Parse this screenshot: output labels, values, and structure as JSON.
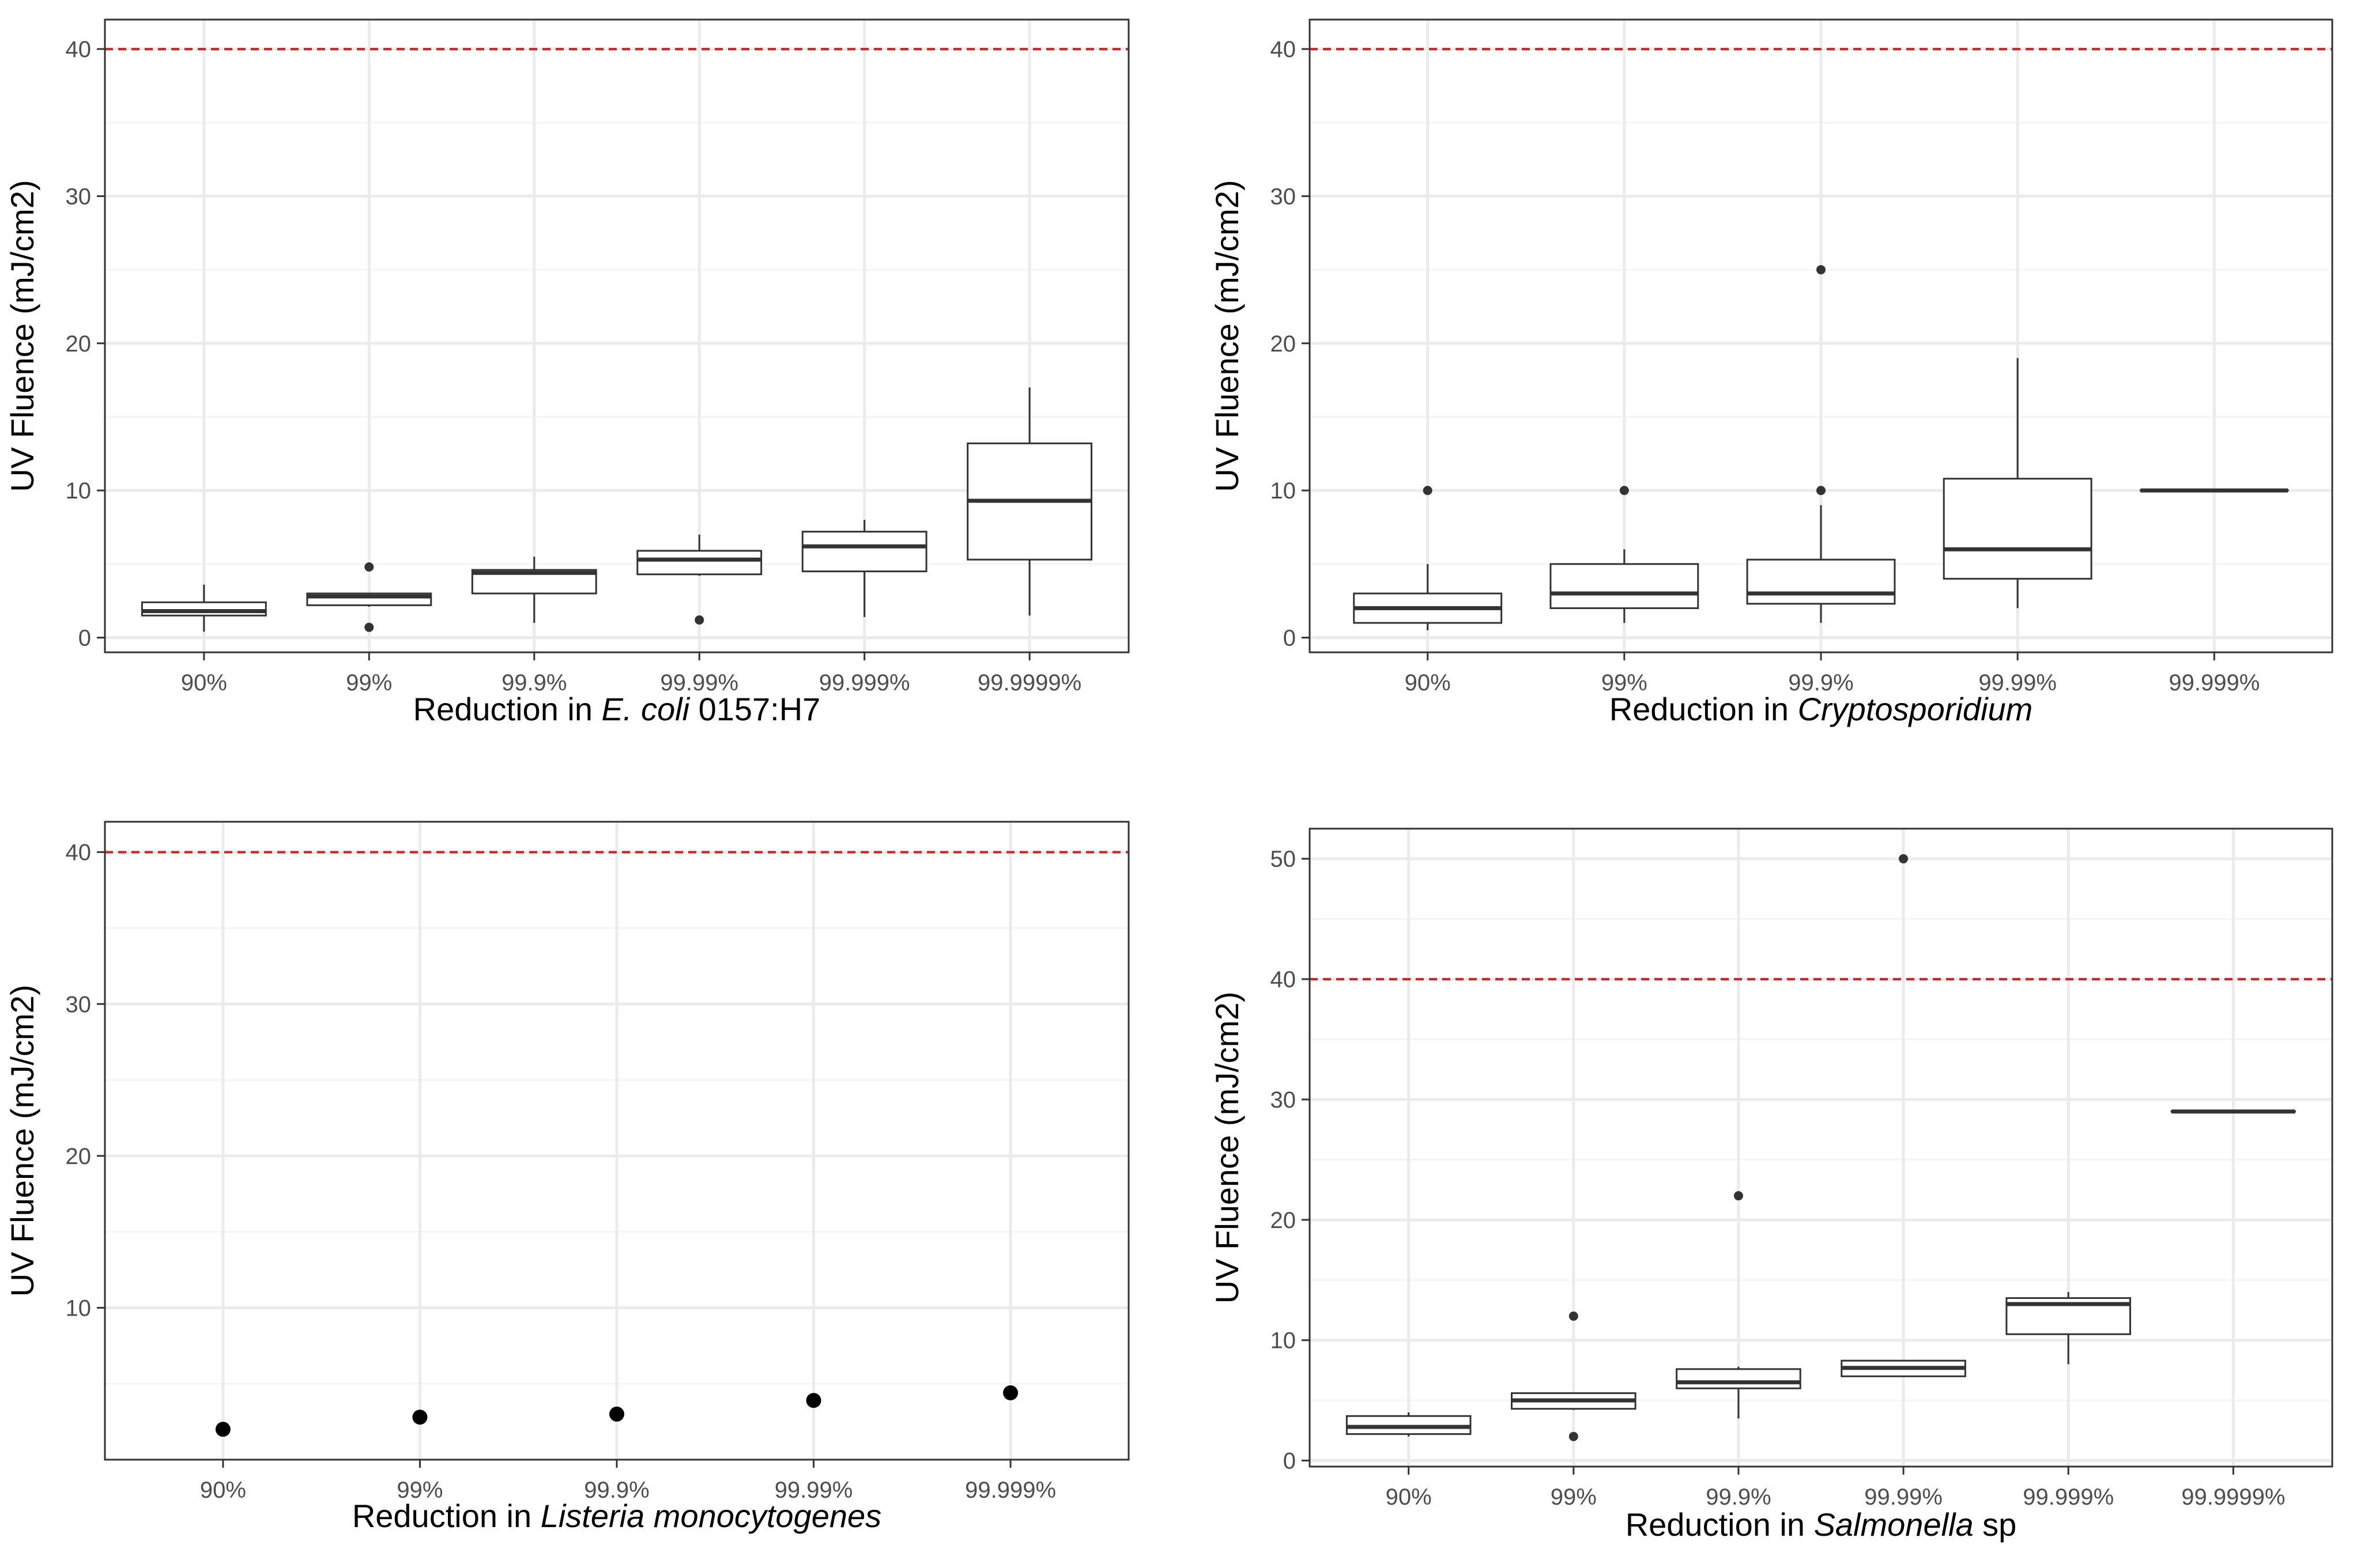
{
  "colors": {
    "reference_line": "#e41a1c",
    "box_stroke": "#333333",
    "grid_major": "#ebebeb",
    "grid_minor": "#f5f5f5",
    "panel_border": "#333333",
    "background": "#ffffff"
  },
  "chart_data": [
    {
      "type": "box",
      "xlabel_prefix": "Reduction in ",
      "xlabel_italic": "E. coli",
      "xlabel_suffix": " 0157:H7",
      "ylabel": "UV Fluence (mJ/cm2)",
      "ylim": [
        -1,
        42
      ],
      "yticks": [
        0,
        10,
        20,
        30,
        40
      ],
      "yminor": [
        5,
        15,
        25,
        35
      ],
      "reference_line": 40,
      "grid": true,
      "categories": [
        "90%",
        "99%",
        "99.9%",
        "99.99%",
        "99.999%",
        "99.9999%"
      ],
      "boxes": [
        {
          "low": 0.4,
          "q1": 1.5,
          "median": 1.8,
          "q3": 2.4,
          "high": 3.6,
          "outliers": []
        },
        {
          "low": 2.1,
          "q1": 2.2,
          "median": 2.8,
          "q3": 3.0,
          "high": 3.0,
          "outliers": [
            4.8,
            0.7
          ]
        },
        {
          "low": 1.0,
          "q1": 3.0,
          "median": 4.4,
          "q3": 4.6,
          "high": 5.5,
          "outliers": []
        },
        {
          "low": 4.2,
          "q1": 4.3,
          "median": 5.3,
          "q3": 5.9,
          "high": 7.0,
          "outliers": [
            1.2
          ]
        },
        {
          "low": 1.4,
          "q1": 4.5,
          "median": 6.2,
          "q3": 7.2,
          "high": 8.0,
          "outliers": []
        },
        {
          "low": 1.5,
          "q1": 5.3,
          "median": 9.3,
          "q3": 13.2,
          "high": 17.0,
          "outliers": []
        }
      ]
    },
    {
      "type": "box",
      "xlabel_prefix": "Reduction in ",
      "xlabel_italic": "Cryptosporidium",
      "xlabel_suffix": "",
      "ylabel": "UV Fluence (mJ/cm2)",
      "ylim": [
        -1,
        42
      ],
      "yticks": [
        0,
        10,
        20,
        30,
        40
      ],
      "yminor": [
        5,
        15,
        25,
        35
      ],
      "reference_line": 40,
      "grid": true,
      "categories": [
        "90%",
        "99%",
        "99.9%",
        "99.99%",
        "99.999%"
      ],
      "boxes": [
        {
          "low": 0.5,
          "q1": 1.0,
          "median": 2.0,
          "q3": 3.0,
          "high": 5.0,
          "outliers": [
            10
          ]
        },
        {
          "low": 1.0,
          "q1": 2.0,
          "median": 3.0,
          "q3": 5.0,
          "high": 6.0,
          "outliers": [
            10
          ]
        },
        {
          "low": 1.0,
          "q1": 2.3,
          "median": 3.0,
          "q3": 5.3,
          "high": 9.0,
          "outliers": [
            25,
            10
          ]
        },
        {
          "low": 2.0,
          "q1": 4.0,
          "median": 6.0,
          "q3": 10.8,
          "high": 19.0,
          "outliers": []
        },
        {
          "low": 10,
          "q1": 10,
          "median": 10,
          "q3": 10,
          "high": 10,
          "outliers": []
        }
      ]
    },
    {
      "type": "scatter",
      "xlabel_prefix": "Reduction in ",
      "xlabel_italic": "Listeria monocytogenes",
      "xlabel_suffix": "",
      "ylabel": "UV Fluence (mJ/cm2)",
      "ylim": [
        0,
        42
      ],
      "yticks": [
        10,
        20,
        30,
        40
      ],
      "yminor": [
        5,
        15,
        25,
        35
      ],
      "reference_line": 40,
      "grid": true,
      "categories": [
        "90%",
        "99%",
        "99.9%",
        "99.99%",
        "99.999%"
      ],
      "values": [
        2.0,
        2.8,
        3.0,
        3.9,
        4.4
      ]
    },
    {
      "type": "box",
      "xlabel_prefix": "Reduction in ",
      "xlabel_italic": "Salmonella",
      "xlabel_suffix": " sp",
      "ylabel": "UV Fluence (mJ/cm2)",
      "ylim": [
        -0.5,
        52.5
      ],
      "yticks": [
        0,
        10,
        20,
        30,
        40,
        50
      ],
      "yminor": [
        5,
        15,
        25,
        35,
        45
      ],
      "reference_line": 40,
      "grid": true,
      "categories": [
        "90%",
        "99%",
        "99.9%",
        "99.99%",
        "99.999%",
        "99.9999%"
      ],
      "boxes": [
        {
          "low": 2.0,
          "q1": 2.2,
          "median": 2.8,
          "q3": 3.7,
          "high": 4.0,
          "outliers": []
        },
        {
          "low": 4.2,
          "q1": 4.3,
          "median": 5.0,
          "q3": 5.6,
          "high": 5.6,
          "outliers": [
            12,
            2
          ]
        },
        {
          "low": 3.5,
          "q1": 6.0,
          "median": 6.5,
          "q3": 7.6,
          "high": 7.8,
          "outliers": [
            22
          ]
        },
        {
          "low": 7.0,
          "q1": 7.0,
          "median": 7.7,
          "q3": 8.3,
          "high": 8.3,
          "outliers": [
            50
          ]
        },
        {
          "low": 8.0,
          "q1": 10.5,
          "median": 13.0,
          "q3": 13.5,
          "high": 14.0,
          "outliers": []
        },
        {
          "low": 29,
          "q1": 29,
          "median": 29,
          "q3": 29,
          "high": 29,
          "outliers": []
        }
      ]
    }
  ]
}
